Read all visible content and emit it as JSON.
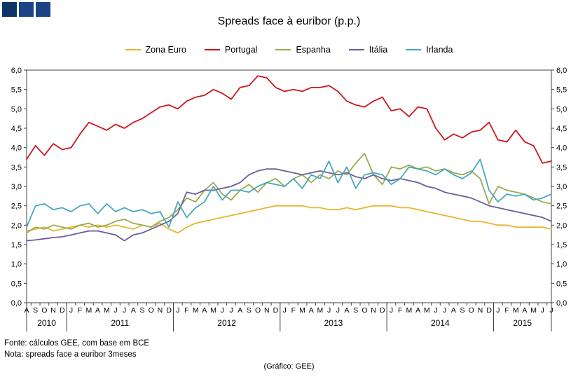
{
  "logo": {
    "colors": [
      "#0F3467",
      "#1A4486",
      "#1A4486"
    ]
  },
  "footer": {
    "source": "Fonte: cálculos GEE, com base em BCE",
    "note": "Nota: spreads face a euribor 3meses",
    "credit": "(Gráfico: GEE)"
  },
  "chart_data": {
    "type": "line",
    "title": "Spreads face à euribor (p.p.)",
    "xlabel": "",
    "ylabel": "",
    "ylim": [
      0,
      6
    ],
    "ytick_step": 0.5,
    "grid": false,
    "legend_position": "top",
    "y_axis_sides": [
      "left",
      "right"
    ],
    "month_labels": [
      "A",
      "S",
      "O",
      "N",
      "D",
      "J",
      "F",
      "M",
      "A",
      "M",
      "J",
      "J",
      "A",
      "S",
      "O",
      "N",
      "D",
      "J",
      "F",
      "M",
      "A",
      "M",
      "J",
      "J",
      "A",
      "S",
      "O",
      "N",
      "D",
      "J",
      "F",
      "M",
      "A",
      "M",
      "J",
      "J",
      "A",
      "S",
      "O",
      "N",
      "D",
      "J",
      "F",
      "M",
      "A",
      "M",
      "J",
      "J",
      "A",
      "S",
      "O",
      "N",
      "D",
      "J",
      "F",
      "M",
      "A",
      "M",
      "J",
      "J"
    ],
    "year_groups": [
      {
        "label": "2010",
        "months": 5
      },
      {
        "label": "2011",
        "months": 12
      },
      {
        "label": "2012",
        "months": 12
      },
      {
        "label": "2013",
        "months": 12
      },
      {
        "label": "2014",
        "months": 12
      },
      {
        "label": "2015",
        "months": 7
      }
    ],
    "series": [
      {
        "name": "Zona Euro",
        "color": "#E7B52C",
        "values": [
          1.85,
          1.9,
          1.95,
          1.85,
          1.9,
          1.95,
          2.0,
          1.95,
          2.0,
          1.95,
          2.0,
          1.95,
          1.9,
          2.0,
          1.95,
          2.05,
          1.9,
          1.8,
          1.95,
          2.05,
          2.1,
          2.15,
          2.2,
          2.25,
          2.3,
          2.35,
          2.4,
          2.45,
          2.5,
          2.5,
          2.5,
          2.5,
          2.45,
          2.45,
          2.4,
          2.4,
          2.45,
          2.4,
          2.45,
          2.5,
          2.5,
          2.5,
          2.45,
          2.45,
          2.4,
          2.35,
          2.3,
          2.25,
          2.2,
          2.15,
          2.1,
          2.1,
          2.05,
          2.0,
          2.0,
          1.95,
          1.95,
          1.95,
          1.95,
          1.9
        ]
      },
      {
        "name": "Portugal",
        "color": "#CC171D",
        "values": [
          3.7,
          4.05,
          3.8,
          4.1,
          3.95,
          4.0,
          4.35,
          4.65,
          4.55,
          4.45,
          4.6,
          4.5,
          4.65,
          4.75,
          4.9,
          5.05,
          5.1,
          5.0,
          5.2,
          5.3,
          5.35,
          5.5,
          5.4,
          5.25,
          5.55,
          5.6,
          5.85,
          5.8,
          5.55,
          5.45,
          5.5,
          5.45,
          5.55,
          5.55,
          5.6,
          5.45,
          5.2,
          5.1,
          5.05,
          5.2,
          5.3,
          4.95,
          5.0,
          4.8,
          5.05,
          5.0,
          4.5,
          4.2,
          4.35,
          4.25,
          4.4,
          4.45,
          4.65,
          4.2,
          4.15,
          4.45,
          4.15,
          4.05,
          3.6,
          3.65
        ]
      },
      {
        "name": "Espanha",
        "color": "#9AAB4F",
        "values": [
          1.8,
          1.95,
          1.9,
          2.0,
          1.95,
          1.9,
          2.0,
          2.05,
          1.95,
          2.0,
          2.1,
          2.15,
          2.05,
          2.0,
          1.95,
          2.1,
          2.2,
          2.4,
          2.7,
          2.6,
          2.9,
          3.1,
          2.8,
          2.65,
          2.9,
          3.05,
          2.85,
          3.1,
          3.2,
          3.0,
          3.2,
          3.3,
          3.1,
          3.3,
          3.2,
          3.4,
          3.3,
          3.6,
          3.85,
          3.3,
          3.05,
          3.5,
          3.45,
          3.55,
          3.45,
          3.5,
          3.4,
          3.45,
          3.35,
          3.3,
          3.4,
          3.2,
          2.55,
          3.0,
          2.9,
          2.85,
          2.8,
          2.7,
          2.6,
          2.55
        ]
      },
      {
        "name": "Itália",
        "color": "#6A5D99",
        "values": [
          1.6,
          1.62,
          1.65,
          1.68,
          1.7,
          1.75,
          1.8,
          1.85,
          1.85,
          1.8,
          1.75,
          1.6,
          1.75,
          1.8,
          1.9,
          2.0,
          2.1,
          2.3,
          2.85,
          2.8,
          2.9,
          2.9,
          2.95,
          3.0,
          3.1,
          3.3,
          3.4,
          3.45,
          3.45,
          3.4,
          3.35,
          3.3,
          3.35,
          3.4,
          3.35,
          3.3,
          3.35,
          3.25,
          3.2,
          3.3,
          3.2,
          3.15,
          3.2,
          3.15,
          3.1,
          3.0,
          2.95,
          2.85,
          2.8,
          2.75,
          2.7,
          2.6,
          2.5,
          2.45,
          2.4,
          2.35,
          2.3,
          2.25,
          2.2,
          2.1
        ]
      },
      {
        "name": "Irlanda",
        "color": "#45A9BD",
        "values": [
          1.95,
          2.5,
          2.55,
          2.4,
          2.45,
          2.35,
          2.5,
          2.55,
          2.3,
          2.55,
          2.35,
          2.45,
          2.35,
          2.4,
          2.3,
          2.35,
          1.95,
          2.6,
          2.2,
          2.45,
          2.6,
          3.0,
          2.65,
          2.9,
          2.9,
          2.85,
          3.0,
          3.1,
          3.05,
          3.0,
          3.2,
          2.95,
          3.3,
          3.2,
          3.65,
          3.1,
          3.5,
          2.95,
          3.3,
          3.35,
          3.3,
          3.05,
          3.2,
          3.5,
          3.45,
          3.4,
          3.3,
          3.45,
          3.3,
          3.2,
          3.35,
          3.7,
          2.9,
          2.6,
          2.8,
          2.75,
          2.8,
          2.65,
          2.7,
          2.8
        ]
      }
    ]
  }
}
